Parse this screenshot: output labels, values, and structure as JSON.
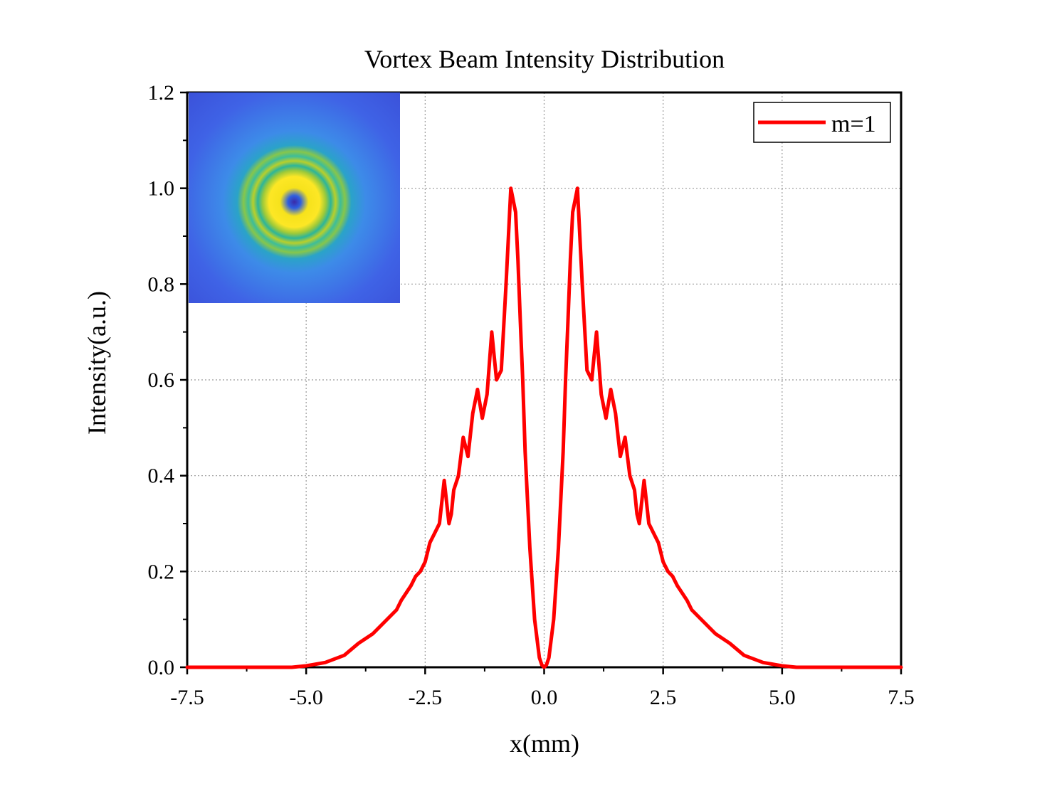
{
  "chart_data": {
    "type": "line",
    "title": "Vortex Beam Intensity Distribution",
    "xlabel": "x(mm)",
    "ylabel": "Intensity(a.u.)",
    "xlim": [
      -7.5,
      7.5
    ],
    "ylim": [
      0,
      1.2
    ],
    "xticks": [
      "-7.5",
      "-5.0",
      "-2.5",
      "0.0",
      "2.5",
      "5.0",
      "7.5"
    ],
    "yticks": [
      "0.0",
      "0.2",
      "0.4",
      "0.6",
      "0.8",
      "1.0",
      "1.2"
    ],
    "grid": true,
    "legend_position": "top-right",
    "inset": "vortex-beam-intensity-image",
    "colors": {
      "series": "#ff0000",
      "grid": "#9a9a9a"
    },
    "series": [
      {
        "name": "m=1",
        "x": [
          -7.5,
          -6.0,
          -5.3,
          -5.0,
          -4.6,
          -4.2,
          -3.9,
          -3.6,
          -3.3,
          -3.1,
          -3.0,
          -2.8,
          -2.7,
          -2.6,
          -2.5,
          -2.4,
          -2.3,
          -2.2,
          -2.1,
          -2.0,
          -1.95,
          -1.9,
          -1.8,
          -1.7,
          -1.6,
          -1.5,
          -1.4,
          -1.3,
          -1.2,
          -1.1,
          -1.0,
          -0.9,
          -0.8,
          -0.7,
          -0.6,
          -0.55,
          -0.5,
          -0.45,
          -0.4,
          -0.3,
          -0.2,
          -0.1,
          -0.05,
          0.0,
          0.05,
          0.1,
          0.2,
          0.3,
          0.4,
          0.45,
          0.5,
          0.55,
          0.6,
          0.7,
          0.8,
          0.9,
          1.0,
          1.1,
          1.2,
          1.3,
          1.4,
          1.5,
          1.6,
          1.7,
          1.8,
          1.9,
          1.95,
          2.0,
          2.1,
          2.2,
          2.3,
          2.4,
          2.5,
          2.6,
          2.7,
          2.8,
          3.0,
          3.1,
          3.3,
          3.6,
          3.9,
          4.2,
          4.6,
          5.0,
          5.3,
          6.0,
          7.5
        ],
        "values": [
          0.0,
          0.0,
          0.0,
          0.003,
          0.01,
          0.025,
          0.05,
          0.07,
          0.1,
          0.12,
          0.14,
          0.17,
          0.19,
          0.2,
          0.22,
          0.26,
          0.28,
          0.3,
          0.39,
          0.3,
          0.32,
          0.37,
          0.4,
          0.48,
          0.44,
          0.53,
          0.58,
          0.52,
          0.57,
          0.7,
          0.6,
          0.62,
          0.8,
          1.0,
          0.95,
          0.85,
          0.72,
          0.6,
          0.45,
          0.25,
          0.1,
          0.02,
          0.005,
          0.0,
          0.005,
          0.02,
          0.1,
          0.25,
          0.45,
          0.6,
          0.72,
          0.85,
          0.95,
          1.0,
          0.8,
          0.62,
          0.6,
          0.7,
          0.57,
          0.52,
          0.58,
          0.53,
          0.44,
          0.48,
          0.4,
          0.37,
          0.32,
          0.3,
          0.39,
          0.3,
          0.28,
          0.26,
          0.22,
          0.2,
          0.19,
          0.17,
          0.14,
          0.12,
          0.1,
          0.07,
          0.05,
          0.025,
          0.01,
          0.003,
          0.0,
          0.0,
          0.0
        ]
      }
    ]
  }
}
